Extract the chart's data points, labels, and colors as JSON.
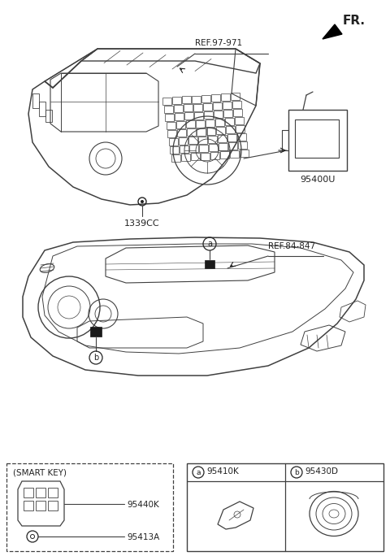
{
  "bg_color": "#ffffff",
  "line_color": "#404040",
  "dark_color": "#222222",
  "fr_label": "FR.",
  "ref1_label": "REF.97-971",
  "ref2_label": "REF.84-847",
  "part1_label": "1339CC",
  "part2_label": "95400U",
  "part3_label": "95410K",
  "part4_label": "95430D",
  "part5_label": "95440K",
  "part6_label": "95413A",
  "smart_key_label": "(SMART KEY)",
  "figsize": [
    4.8,
    6.84
  ],
  "dpi": 100
}
